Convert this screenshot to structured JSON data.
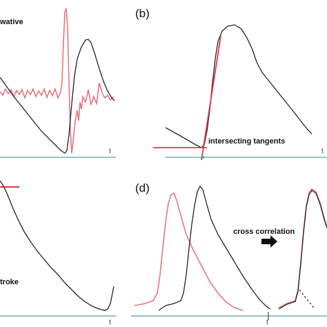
{
  "figure": {
    "colors": {
      "black_signal": "#222222",
      "red_signal": "#e8737f",
      "baseline": "#5aa0a0",
      "tangent": "#e0354a",
      "arrow": "#111111"
    },
    "panels": {
      "a": {
        "label": "",
        "annotation": "derivative",
        "annotation_visible": "wative",
        "axis_label": "t"
      },
      "b": {
        "label": "(b)",
        "annotation": "intersecting tangents",
        "axis_label": "t"
      },
      "c": {
        "label": "",
        "annotation": "stroke",
        "annotation_visible": "troke",
        "axis_label": "t"
      },
      "d": {
        "label": "(d)",
        "annotation": "cross correlation",
        "axis_label": "t"
      }
    }
  },
  "chart_data": [
    {
      "type": "line",
      "panel": "a",
      "title": "",
      "xlabel": "t",
      "ylabel": "",
      "series": [
        {
          "name": "",
          "color": "#222222",
          "shape": "pulse wave (partially cropped)"
        },
        {
          "name": "",
          "color": "#e8737f",
          "shape": "derivative of pulse wave"
        }
      ],
      "annotations": [
        "wative"
      ]
    },
    {
      "type": "line",
      "panel": "b",
      "title": "(b)",
      "xlabel": "t",
      "ylabel": "",
      "series": [
        {
          "name": "",
          "color": "#222222",
          "shape": "pulse wave"
        },
        {
          "name": "",
          "color": "#e0354a",
          "shape": "tangent lines"
        }
      ],
      "annotations": [
        "intersecting tangents"
      ]
    },
    {
      "type": "line",
      "panel": "c",
      "title": "",
      "xlabel": "t",
      "ylabel": "",
      "series": [
        {
          "name": "",
          "color": "#222222",
          "shape": "pulse wave (partially cropped)"
        }
      ],
      "annotations": [
        "troke"
      ]
    },
    {
      "type": "line",
      "panel": "d",
      "title": "(d)",
      "xlabel": "t",
      "ylabel": "",
      "series": [
        {
          "name": "",
          "color": "#e8737f",
          "shape": "reference pulse wave"
        },
        {
          "name": "",
          "color": "#222222",
          "shape": "delayed pulse wave"
        }
      ],
      "annotations": [
        "cross correlation"
      ]
    }
  ]
}
